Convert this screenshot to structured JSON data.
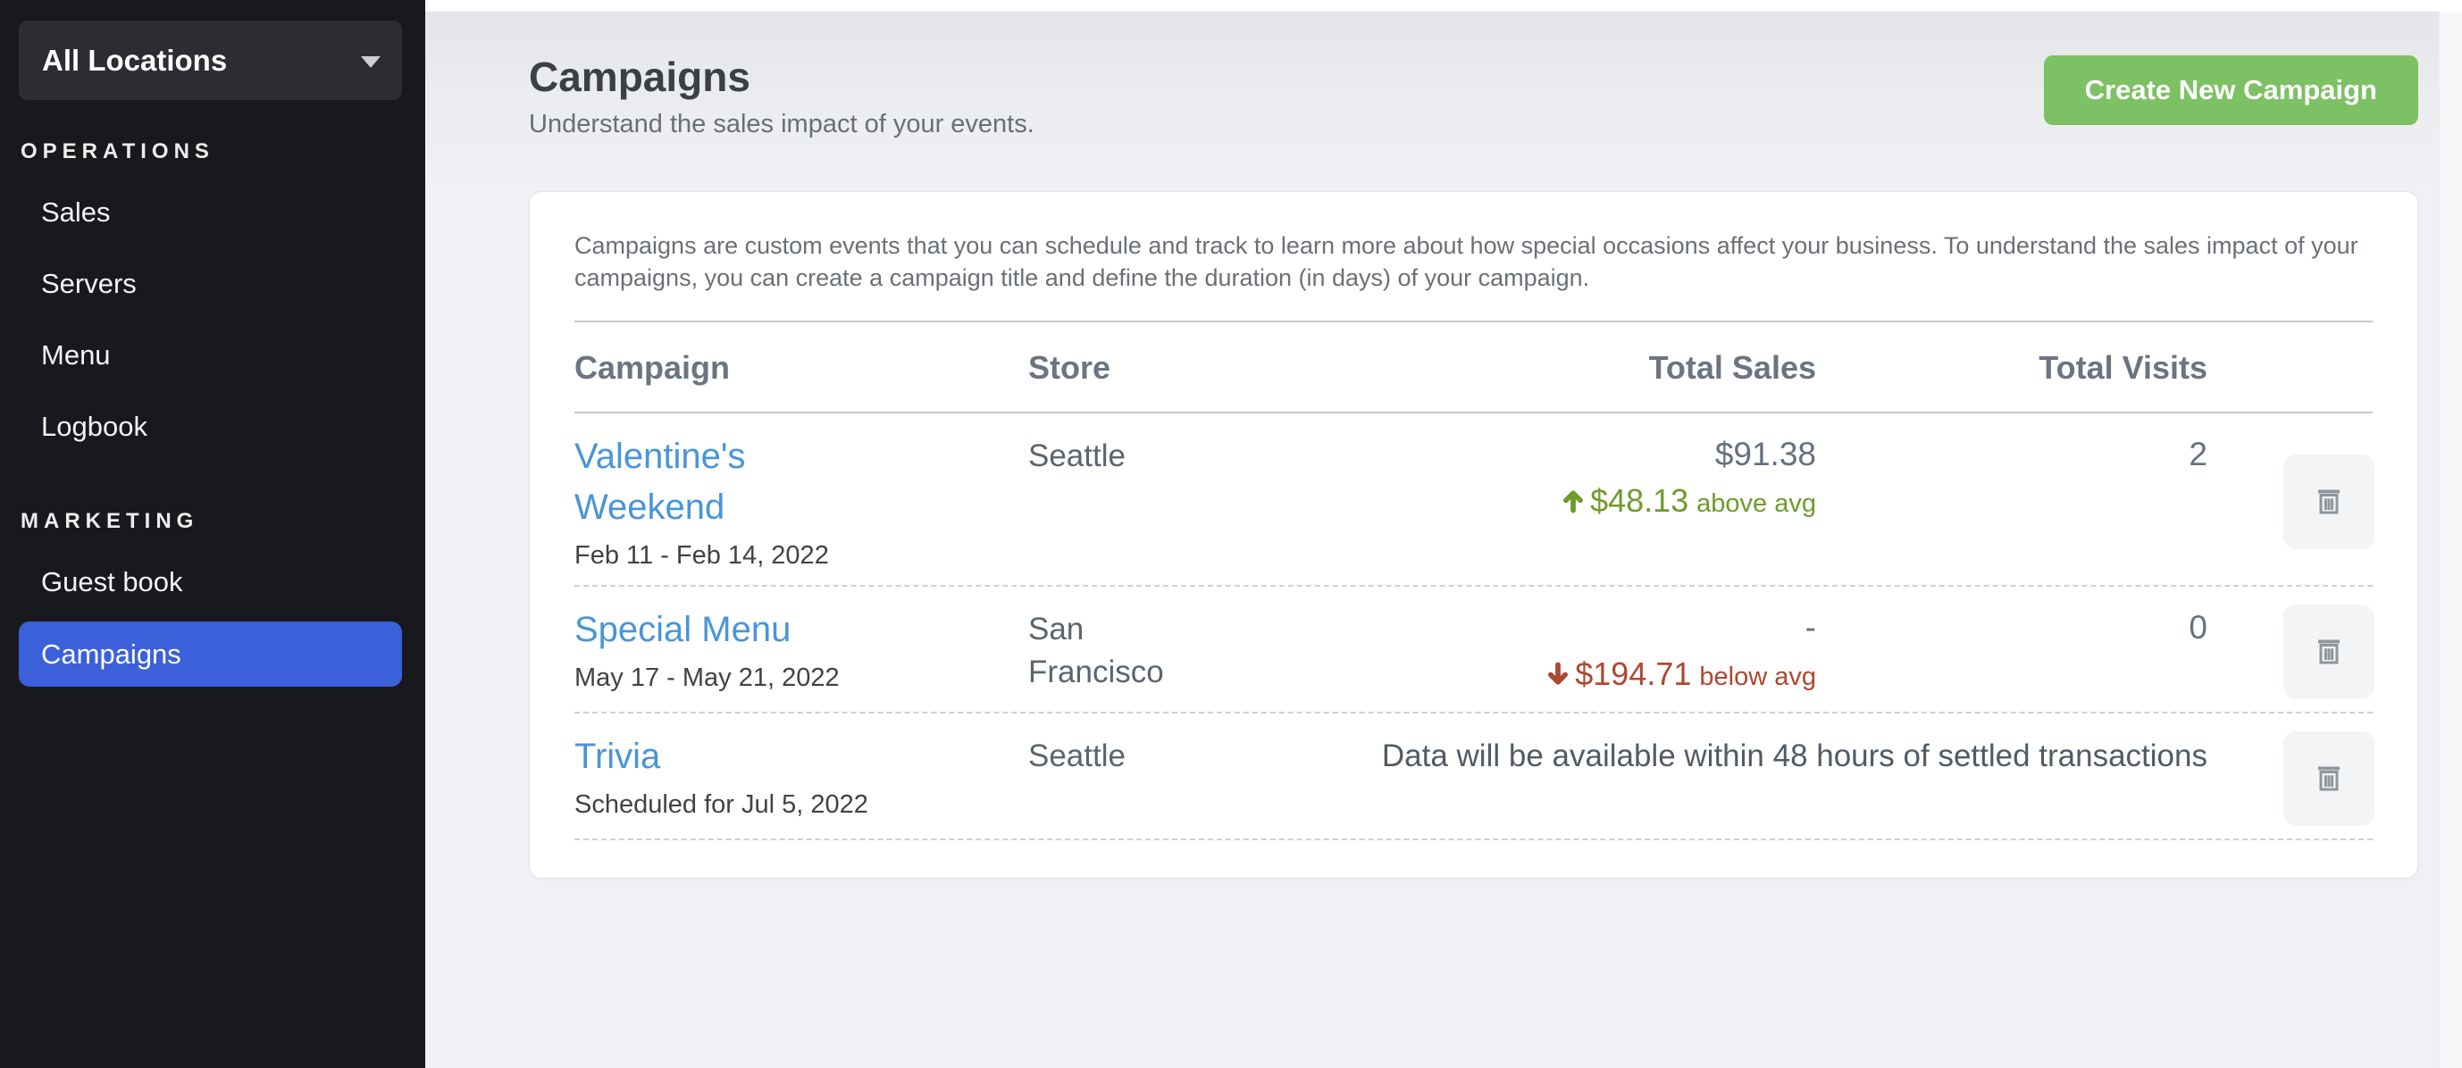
{
  "sidebar": {
    "location_selector": {
      "label": "All Locations",
      "icon": "chevron-down"
    },
    "sections": [
      {
        "label": "OPERATIONS",
        "items": [
          {
            "label": "Sales",
            "active": false
          },
          {
            "label": "Servers",
            "active": false
          },
          {
            "label": "Menu",
            "active": false
          },
          {
            "label": "Logbook",
            "active": false
          }
        ]
      },
      {
        "label": "MARKETING",
        "items": [
          {
            "label": "Guest book",
            "active": false
          },
          {
            "label": "Campaigns",
            "active": true
          }
        ]
      }
    ]
  },
  "header": {
    "title": "Campaigns",
    "subtitle": "Understand the sales impact of your events.",
    "create_button_label": "Create New Campaign"
  },
  "card": {
    "description": "Campaigns are custom events that you can schedule and track to learn more about how special occasions affect your business. To understand the sales impact of your campaigns, you can create a campaign title and define the duration (in days) of your campaign.",
    "table": {
      "columns": [
        "Campaign",
        "Store",
        "Total Sales",
        "Total Visits"
      ],
      "rows": [
        {
          "name": "Valentine's Weekend",
          "dates": "Feb 11 - Feb 14, 2022",
          "store": "Seattle",
          "total_sales": "$91.38",
          "delta_value": "$48.13",
          "delta_label": "above avg",
          "delta_direction": "up",
          "total_visits": "2",
          "delete_icon": "trash"
        },
        {
          "name": "Special Menu",
          "dates": "May 17 - May 21, 2022",
          "store": "San Francisco",
          "total_sales": "-",
          "delta_value": "$194.71",
          "delta_label": "below avg",
          "delta_direction": "down",
          "total_visits": "0",
          "delete_icon": "trash"
        },
        {
          "name": "Trivia",
          "dates": "Scheduled for Jul 5, 2022",
          "store": "Seattle",
          "message": "Data will be available within 48 hours of settled transactions",
          "delete_icon": "trash"
        }
      ]
    }
  },
  "colors": {
    "sidebar_bg": "#18191d",
    "nav_active_blue": "#3b60da",
    "button_green": "#7cc163",
    "link_blue": "#4895da",
    "delta_up_green": "#6f9b2d",
    "delta_down_red": "#ad4831"
  }
}
